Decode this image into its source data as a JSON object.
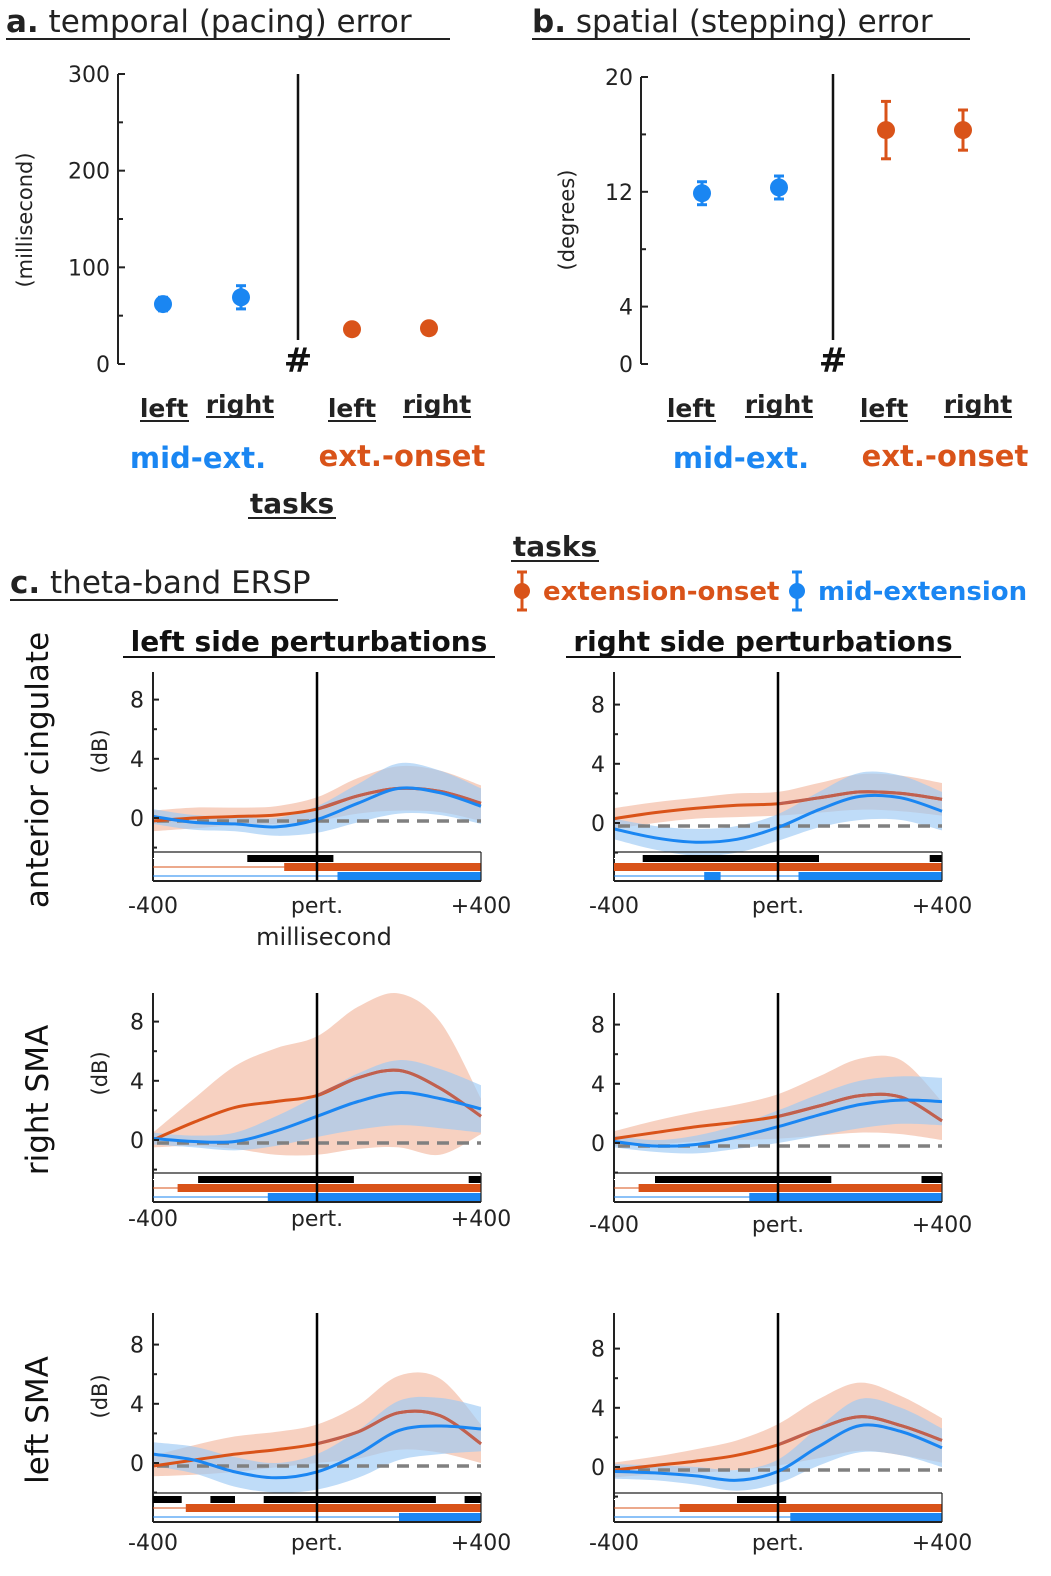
{
  "colors": {
    "mid_extension": "#1a86f2",
    "extension_onset": "#d95319",
    "mean_line": "#c0604f",
    "baseline_dash": "#808080"
  },
  "panel_a": {
    "title_bold": "a.",
    "title": " temporal (pacing) error",
    "ylabel": "(millisecond)",
    "yticks": [
      "300",
      "200",
      "100",
      "0"
    ],
    "categories": [
      "left",
      "right",
      "left",
      "right"
    ],
    "groups": [
      "mid-ext.",
      "ext.-onset"
    ],
    "xlabel": "tasks",
    "separator": "#"
  },
  "panel_b": {
    "title_bold": "b.",
    "title": " spatial (stepping) error",
    "ylabel": "(degrees)",
    "yticks": [
      "20",
      "12",
      "4",
      "0"
    ],
    "categories": [
      "left",
      "right",
      "left",
      "right"
    ],
    "groups": [
      "mid-ext.",
      "ext.-onset"
    ],
    "separator": "#"
  },
  "panel_c": {
    "title_bold": "c.",
    "title": " theta-band ERSP",
    "legend_title": "tasks",
    "legend": [
      "extension-onset",
      "mid-extension"
    ],
    "col_headers": [
      "left side perturbations",
      "right side perturbations"
    ],
    "rows": [
      "anterior cingulate",
      "right SMA",
      "left SMA"
    ],
    "ylabel": "(dB)",
    "yticks": [
      "8",
      "4",
      "0"
    ],
    "xticks": [
      "-400",
      "pert.",
      "+400"
    ],
    "xlabel": "millisecond"
  },
  "chart_data": [
    {
      "type": "scatter",
      "title": "temporal (pacing) error",
      "xlabel": "tasks",
      "ylabel": "(millisecond)",
      "ylim": [
        0,
        300
      ],
      "categories": [
        "left",
        "right",
        "left",
        "right"
      ],
      "series": [
        {
          "name": "mid-ext.",
          "color": "#1a86f2",
          "points": [
            {
              "category": "left",
              "y": 62,
              "err": 7
            },
            {
              "category": "right",
              "y": 69,
              "err": 12
            }
          ]
        },
        {
          "name": "ext.-onset",
          "color": "#d95319",
          "points": [
            {
              "category": "left",
              "y": 36,
              "err": 3
            },
            {
              "category": "right",
              "y": 37,
              "err": 3
            }
          ]
        }
      ]
    },
    {
      "type": "scatter",
      "title": "spatial (stepping) error",
      "ylabel": "(degrees)",
      "ylim": [
        0,
        20
      ],
      "categories": [
        "left",
        "right",
        "left",
        "right"
      ],
      "series": [
        {
          "name": "mid-ext.",
          "color": "#1a86f2",
          "points": [
            {
              "category": "left",
              "y": 11.9,
              "err": 0.8
            },
            {
              "category": "right",
              "y": 12.3,
              "err": 0.8
            }
          ]
        },
        {
          "name": "ext.-onset",
          "color": "#d95319",
          "points": [
            {
              "category": "left",
              "y": 16.3,
              "err": 2.0
            },
            {
              "category": "right",
              "y": 16.3,
              "err": 1.4
            }
          ]
        }
      ]
    },
    {
      "type": "line",
      "title": "theta-band ERSP",
      "xlabel": "millisecond",
      "ylabel": "(dB)",
      "xlim": [
        -400,
        400
      ],
      "x": [
        -400,
        -300,
        -200,
        -100,
        0,
        100,
        200,
        300,
        400
      ],
      "panels": [
        {
          "region": "anterior cingulate",
          "side": "left",
          "series": [
            {
              "name": "extension-onset",
              "values": [
                -0.2,
                0.0,
                0.1,
                0.2,
                0.6,
                1.5,
                2.0,
                1.8,
                1.0
              ],
              "band": [
                0.7,
                0.7,
                0.6,
                0.6,
                0.8,
                1.2,
                1.5,
                1.4,
                1.2
              ]
            },
            {
              "name": "mid-extension",
              "values": [
                0.1,
                -0.3,
                -0.4,
                -0.6,
                -0.1,
                1.0,
                2.0,
                1.7,
                0.8
              ],
              "band": [
                0.5,
                0.5,
                0.5,
                0.6,
                0.9,
                1.3,
                1.7,
                1.5,
                1.2
              ]
            }
          ],
          "sig": {
            "diff": [
              [
                -170,
                40
              ]
            ],
            "onset": [
              [
                -80,
                400
              ]
            ],
            "mid": [
              [
                50,
                400
              ]
            ]
          }
        },
        {
          "region": "anterior cingulate",
          "side": "right",
          "series": [
            {
              "name": "extension-onset",
              "values": [
                0.3,
                0.7,
                1.0,
                1.2,
                1.3,
                1.7,
                2.1,
                2.0,
                1.6
              ],
              "band": [
                0.7,
                0.7,
                0.7,
                0.8,
                0.8,
                1.0,
                1.2,
                1.2,
                1.1
              ]
            },
            {
              "name": "mid-extension",
              "values": [
                -0.4,
                -1.0,
                -1.3,
                -1.1,
                -0.3,
                0.9,
                1.8,
                1.7,
                0.8
              ],
              "band": [
                0.7,
                0.8,
                0.9,
                0.9,
                0.9,
                1.2,
                1.6,
                1.5,
                1.3
              ]
            }
          ],
          "sig": {
            "diff": [
              [
                -330,
                100
              ],
              [
                370,
                400
              ]
            ],
            "onset": [
              [
                -400,
                400
              ]
            ],
            "mid": [
              [
                -180,
                -140
              ],
              [
                50,
                400
              ]
            ]
          }
        },
        {
          "region": "right SMA",
          "side": "left",
          "series": [
            {
              "name": "extension-onset",
              "values": [
                0.0,
                1.2,
                2.2,
                2.6,
                3.0,
                4.2,
                4.7,
                3.5,
                1.6
              ],
              "band": [
                0.5,
                1.6,
                2.8,
                3.6,
                4.0,
                4.8,
                5.2,
                4.5,
                1.2
              ]
            },
            {
              "name": "mid-extension",
              "values": [
                0.1,
                -0.1,
                -0.1,
                0.6,
                1.6,
                2.6,
                3.2,
                2.8,
                2.1
              ],
              "band": [
                0.4,
                0.4,
                0.6,
                1.0,
                1.4,
                1.9,
                2.2,
                2.0,
                1.6
              ]
            }
          ],
          "sig": {
            "diff": [
              [
                -290,
                90
              ],
              [
                370,
                400
              ]
            ],
            "onset": [
              [
                -340,
                400
              ]
            ],
            "mid": [
              [
                -120,
                400
              ]
            ]
          }
        },
        {
          "region": "right SMA",
          "side": "right",
          "series": [
            {
              "name": "extension-onset",
              "values": [
                0.3,
                0.7,
                1.1,
                1.4,
                1.8,
                2.5,
                3.2,
                3.1,
                1.5
              ],
              "band": [
                0.5,
                0.8,
                1.0,
                1.2,
                1.5,
                2.0,
                2.5,
                2.5,
                1.3
              ]
            },
            {
              "name": "mid-extension",
              "values": [
                0.1,
                -0.2,
                -0.1,
                0.4,
                1.1,
                1.9,
                2.6,
                2.9,
                2.8
              ],
              "band": [
                0.4,
                0.4,
                0.6,
                0.8,
                1.1,
                1.4,
                1.6,
                1.6,
                1.6
              ]
            }
          ],
          "sig": {
            "diff": [
              [
                -300,
                130
              ],
              [
                350,
                400
              ]
            ],
            "onset": [
              [
                -340,
                400
              ]
            ],
            "mid": [
              [
                -70,
                400
              ]
            ]
          }
        },
        {
          "region": "left SMA",
          "side": "left",
          "series": [
            {
              "name": "extension-onset",
              "values": [
                -0.2,
                0.2,
                0.6,
                0.9,
                1.3,
                2.1,
                3.4,
                3.2,
                1.3
              ],
              "band": [
                0.7,
                1.0,
                1.2,
                1.2,
                1.3,
                1.8,
                2.5,
                2.5,
                1.3
              ]
            },
            {
              "name": "mid-extension",
              "values": [
                0.6,
                0.2,
                -0.6,
                -1.0,
                -0.6,
                0.6,
                2.2,
                2.5,
                2.3
              ],
              "band": [
                0.8,
                0.9,
                1.0,
                1.0,
                1.2,
                1.6,
                2.0,
                1.9,
                1.5
              ]
            }
          ],
          "sig": {
            "diff": [
              [
                -400,
                -330
              ],
              [
                -260,
                -200
              ],
              [
                -130,
                290
              ],
              [
                360,
                400
              ]
            ],
            "onset": [
              [
                -320,
                400
              ]
            ],
            "mid": [
              [
                200,
                400
              ]
            ]
          }
        },
        {
          "region": "left SMA",
          "side": "right",
          "series": [
            {
              "name": "extension-onset",
              "values": [
                -0.2,
                0.1,
                0.4,
                0.8,
                1.5,
                2.6,
                3.4,
                2.8,
                1.8
              ],
              "band": [
                0.5,
                0.6,
                0.8,
                1.0,
                1.4,
                2.0,
                2.3,
                2.0,
                1.5
              ]
            },
            {
              "name": "mid-extension",
              "values": [
                -0.3,
                -0.4,
                -0.6,
                -0.9,
                -0.3,
                1.4,
                2.8,
                2.4,
                1.3
              ],
              "band": [
                0.5,
                0.5,
                0.6,
                0.7,
                0.8,
                1.3,
                1.8,
                1.6,
                1.3
              ]
            }
          ],
          "sig": {
            "diff": [
              [
                -100,
                20
              ]
            ],
            "onset": [
              [
                -240,
                400
              ]
            ],
            "mid": [
              [
                30,
                400
              ]
            ]
          }
        }
      ]
    }
  ]
}
